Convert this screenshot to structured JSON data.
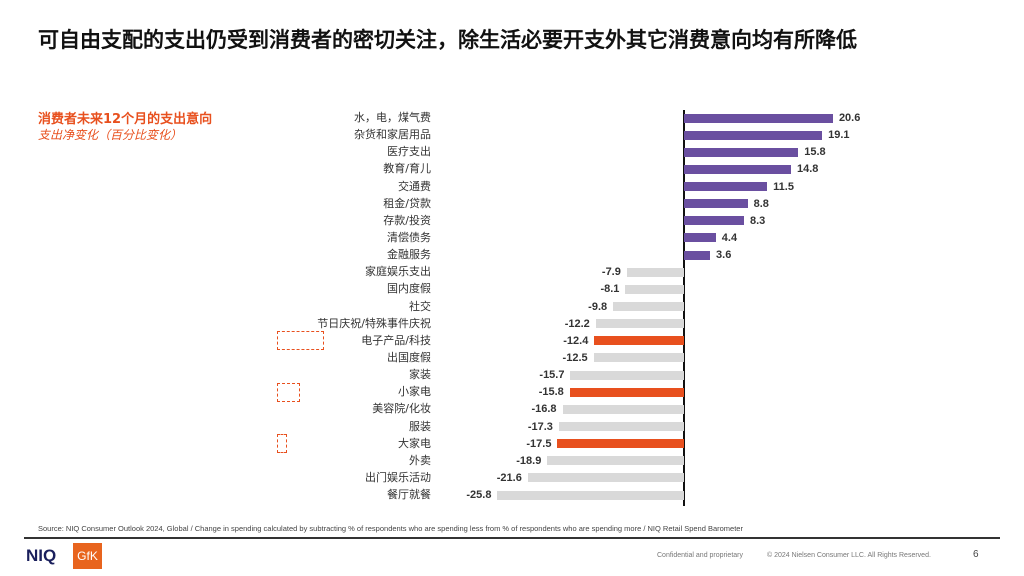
{
  "header": {
    "title": "可自由支配的支出仍受到消费者的密切关注，除生活必要开支外其它消费意向均有所降低"
  },
  "chart_data": {
    "type": "bar",
    "orientation": "horizontal",
    "title": "消费者未来12个月的支出意向",
    "subtitle": "支出净变化（百分比变化）",
    "categories": [
      "水，电，煤气费",
      "杂货和家居用品",
      "医疗支出",
      "教育/育儿",
      "交通费",
      "租金/贷款",
      "存款/投资",
      "清偿债务",
      "金融服务",
      "家庭娱乐支出",
      "国内度假",
      "社交",
      "节日庆祝/特殊事件庆祝",
      "电子产品/科技",
      "出国度假",
      "家装",
      "小家电",
      "美容院/化妆",
      "服装",
      "大家电",
      "外卖",
      "出门娱乐活动",
      "餐厅就餐"
    ],
    "values": [
      20.6,
      19.1,
      15.8,
      14.8,
      11.5,
      8.8,
      8.3,
      4.4,
      3.6,
      -7.9,
      -8.1,
      -9.8,
      -12.2,
      -12.4,
      -12.5,
      -15.7,
      -15.8,
      -16.8,
      -17.3,
      -17.5,
      -18.9,
      -21.6,
      -25.8
    ],
    "highlighted": [
      "电子产品/科技",
      "小家电",
      "大家电"
    ],
    "colors": {
      "positive": "#6a4fa0",
      "negative": "#d9d9d9",
      "highlight": "#e8501e"
    },
    "grid": false
  },
  "footer": {
    "source": "Source: NIQ Consumer Outlook 2024, Global / Change in spending calculated by subtracting % of respondents who are spending less from % of respondents who are spending more / NIQ Retail Spend Barometer",
    "confidential": "Confidential and proprietary",
    "copyright": "© 2024 Nielsen Consumer LLC. All Rights Reserved.",
    "page": "6",
    "logo_niq": "NIQ",
    "logo_gfk": "GfK"
  }
}
